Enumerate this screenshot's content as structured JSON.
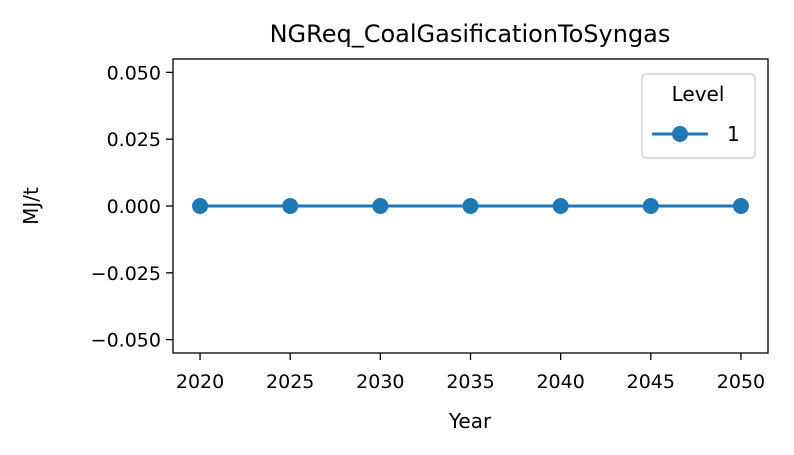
{
  "chart_data": {
    "type": "line",
    "title": "NGReq_CoalGasificationToSyngas",
    "xlabel": "Year",
    "ylabel": "MJ/t",
    "x": [
      2020,
      2025,
      2030,
      2035,
      2040,
      2045,
      2050
    ],
    "xlim": [
      2018.5,
      2051.5
    ],
    "ylim": [
      -0.055,
      0.055
    ],
    "xticks": [
      2020,
      2025,
      2030,
      2035,
      2040,
      2045,
      2050
    ],
    "yticks": [
      0.05,
      0.025,
      0.0,
      -0.025,
      -0.05
    ],
    "ytick_labels": [
      "0.050",
      "0.025",
      "0.000",
      "−0.025",
      "−0.050"
    ],
    "grid": false,
    "legend": {
      "title": "Level",
      "placement": "top-right"
    },
    "series": [
      {
        "name": "1",
        "color": "#1f77b4",
        "marker": "circle",
        "values": [
          0,
          0,
          0,
          0,
          0,
          0,
          0
        ]
      }
    ]
  }
}
